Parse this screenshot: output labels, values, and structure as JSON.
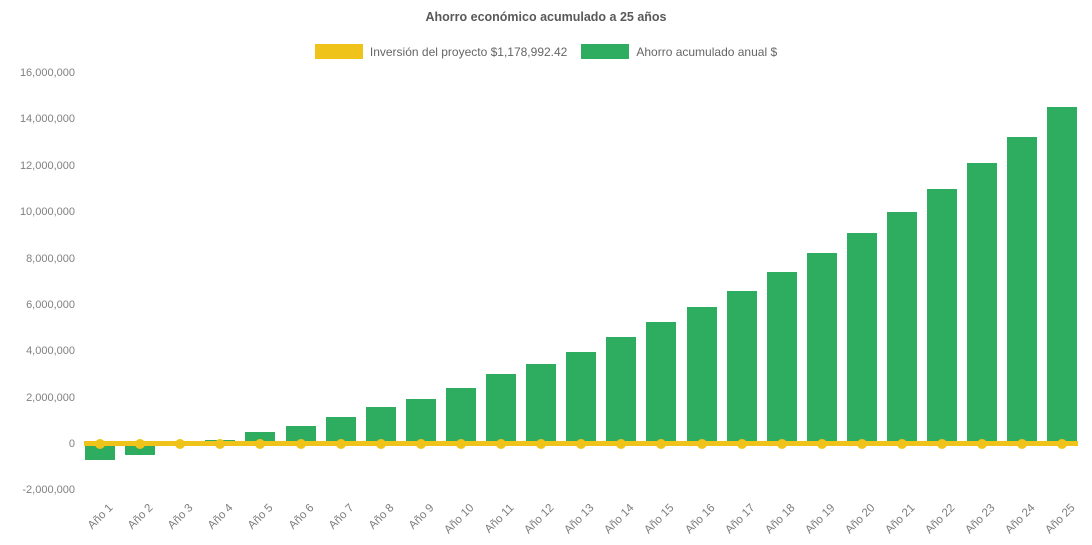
{
  "title": "Ahorro económico acumulado a 25 años",
  "legend": [
    {
      "label": "Inversión del proyecto $1,178,992.42",
      "color": "#efc31a",
      "series_type": "line"
    },
    {
      "label": "Ahorro acumulado anual $",
      "color": "#2ead61",
      "series_type": "bar"
    }
  ],
  "chart_data": {
    "type": "bar",
    "title": "Ahorro económico acumulado a 25 años",
    "categories": [
      "Año 1",
      "Año 2",
      "Año 3",
      "Año 4",
      "Año 5",
      "Año 6",
      "Año 7",
      "Año 8",
      "Año 9",
      "Año 10",
      "Año 11",
      "Año 12",
      "Año 13",
      "Año 14",
      "Año 15",
      "Año 16",
      "Año 17",
      "Año 18",
      "Año 19",
      "Año 20",
      "Año 21",
      "Año 22",
      "Año 23",
      "Año 24",
      "Año 25"
    ],
    "series": [
      {
        "name": "Ahorro acumulado anual $",
        "type": "bar",
        "color": "#2ead61",
        "values": [
          -700000,
          -480000,
          -100000,
          170000,
          500000,
          780000,
          1170000,
          1600000,
          1950000,
          2400000,
          3000000,
          3450000,
          3950000,
          4600000,
          5250000,
          5900000,
          6600000,
          7400000,
          8250000,
          9100000,
          10000000,
          11000000,
          12100000,
          13250000,
          14550000
        ]
      },
      {
        "name": "Inversión del proyecto $1,178,992.42",
        "type": "line",
        "color": "#efc31a",
        "constant_value": 1178992.42,
        "rendered_at_value": 0,
        "markers": true
      }
    ],
    "xlabel": "",
    "ylabel": "",
    "ylim": [
      -2000000,
      16000000
    ],
    "ytick_values": [
      -2000000,
      0,
      2000000,
      4000000,
      6000000,
      8000000,
      10000000,
      12000000,
      14000000,
      16000000
    ],
    "ytick_labels": [
      "-2,000,000",
      "0",
      "2,000,000",
      "4,000,000",
      "6,000,000",
      "8,000,000",
      "10,000,000",
      "12,000,000",
      "14,000,000",
      "16,000,000"
    ],
    "grid": false,
    "legend_position": "top"
  }
}
